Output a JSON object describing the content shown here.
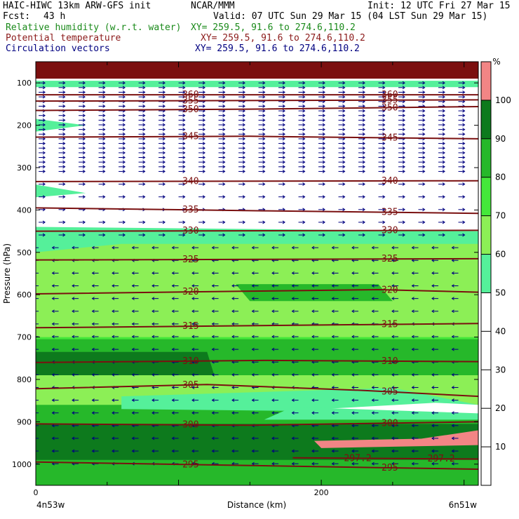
{
  "header": {
    "line1_left": "HAIC-HIWC 13km ARW-GFS init",
    "line1_mid": "NCAR/MMM",
    "line1_right": "Init: 12 UTC Fri 27 Mar 15",
    "fcst_label": "Fcst:",
    "fcst_value": "43 h",
    "valid": "Valid: 07 UTC Sun 29 Mar 15 (04 LST Sun 29 Mar 15)",
    "field1_name": "Relative humidity (w.r.t. water)",
    "field1_xy": "XY= 259.5, 91.6 to 274.6,110.2",
    "field2_name": "Potential temperature",
    "field2_xy": "XY= 259.5, 91.6 to 274.6,110.2",
    "field3_name": "Circulation vectors",
    "field3_xy": "XY= 259.5, 91.6 to 274.6,110.2",
    "colors": {
      "rh": "#1a8a1a",
      "theta": "#8b1a1a",
      "vec": "#000080"
    }
  },
  "chart_data": {
    "type": "cross-section",
    "xlabel": "Distance (km)",
    "ylabel": "Pressure (hPa)",
    "x_ticks": [
      0,
      200
    ],
    "x_range": [
      0,
      310
    ],
    "y_ticks": [
      100,
      200,
      300,
      400,
      500,
      600,
      700,
      800,
      900,
      1000
    ],
    "y_range": [
      50,
      1050
    ],
    "y_scale": "linear",
    "endpoints": {
      "left": "4n53w",
      "right": "6n51w"
    },
    "colorbar": {
      "unit": "%",
      "ticks": [
        10,
        20,
        30,
        40,
        50,
        60,
        70,
        80,
        90,
        100
      ],
      "bands": [
        {
          "min": 0,
          "max": 50,
          "color": "#ffffff"
        },
        {
          "min": 50,
          "max": 60,
          "color": "#55f09a"
        },
        {
          "min": 60,
          "max": 70,
          "color": "#8cef56"
        },
        {
          "min": 70,
          "max": 80,
          "color": "#44e83a"
        },
        {
          "min": 80,
          "max": 90,
          "color": "#26b82a"
        },
        {
          "min": 90,
          "max": 100,
          "color": "#0d7a1d"
        },
        {
          "min": 100,
          "max": 110,
          "color": "#f28585"
        }
      ],
      "top_color": "#7b0f0f"
    },
    "theta_contours": [
      {
        "value": 360,
        "label": "360",
        "points": [
          [
            0,
            128
          ],
          [
            310,
            128
          ]
        ]
      },
      {
        "value": 355,
        "label": "355",
        "points": [
          [
            0,
            143
          ],
          [
            310,
            140
          ]
        ]
      },
      {
        "value": 350,
        "label": "350",
        "points": [
          [
            0,
            165
          ],
          [
            150,
            162
          ],
          [
            310,
            156
          ]
        ]
      },
      {
        "value": 345,
        "label": "345",
        "points": [
          [
            0,
            228
          ],
          [
            150,
            226
          ],
          [
            310,
            232
          ]
        ]
      },
      {
        "value": 340,
        "label": "340",
        "points": [
          [
            0,
            333
          ],
          [
            310,
            331
          ]
        ]
      },
      {
        "value": 335,
        "label": "335",
        "points": [
          [
            0,
            395
          ],
          [
            160,
            402
          ],
          [
            310,
            408
          ]
        ]
      },
      {
        "value": 330,
        "label": "330",
        "points": [
          [
            0,
            450
          ],
          [
            310,
            448
          ]
        ]
      },
      {
        "value": 325,
        "label": "325",
        "points": [
          [
            0,
            518
          ],
          [
            310,
            515
          ]
        ]
      },
      {
        "value": 320,
        "label": "320",
        "points": [
          [
            0,
            598
          ],
          [
            140,
            592
          ],
          [
            240,
            588
          ],
          [
            310,
            594
          ]
        ]
      },
      {
        "value": 315,
        "label": "315",
        "points": [
          [
            0,
            678
          ],
          [
            310,
            668
          ]
        ]
      },
      {
        "value": 310,
        "label": "310",
        "points": [
          [
            0,
            760
          ],
          [
            160,
            755
          ],
          [
            310,
            758
          ]
        ]
      },
      {
        "value": 305,
        "label": "305",
        "points": [
          [
            0,
            822
          ],
          [
            120,
            812
          ],
          [
            230,
            826
          ],
          [
            310,
            840
          ]
        ]
      },
      {
        "value": 300,
        "label": "300",
        "points": [
          [
            0,
            905
          ],
          [
            150,
            908
          ],
          [
            310,
            900
          ]
        ]
      },
      {
        "value": 297.2,
        "label": "297.2",
        "points": [
          [
            180,
            985
          ],
          [
            310,
            988
          ]
        ]
      },
      {
        "value": 295,
        "label": "295",
        "points": [
          [
            0,
            995
          ],
          [
            310,
            1012
          ]
        ]
      }
    ],
    "rh_regions": [
      {
        "color": "#44e83a",
        "points": [
          [
            0,
            480
          ],
          [
            310,
            480
          ],
          [
            310,
            1050
          ],
          [
            0,
            1050
          ]
        ]
      },
      {
        "color": "#8cef56",
        "points": [
          [
            0,
            462
          ],
          [
            120,
            470
          ],
          [
            310,
            470
          ],
          [
            310,
            700
          ],
          [
            0,
            700
          ]
        ]
      },
      {
        "color": "#55f09a",
        "points": [
          [
            0,
            440
          ],
          [
            310,
            450
          ],
          [
            310,
            480
          ],
          [
            0,
            480
          ]
        ]
      },
      {
        "color": "#55f09a",
        "points": [
          [
            0,
            460
          ],
          [
            60,
            480
          ],
          [
            0,
            500
          ]
        ]
      },
      {
        "color": "#26b82a",
        "points": [
          [
            0,
            705
          ],
          [
            310,
            705
          ],
          [
            310,
            920
          ],
          [
            0,
            920
          ]
        ]
      },
      {
        "color": "#26b82a",
        "points": [
          [
            140,
            575
          ],
          [
            240,
            575
          ],
          [
            250,
            615
          ],
          [
            150,
            615
          ]
        ]
      },
      {
        "color": "#0d7a1d",
        "points": [
          [
            0,
            735
          ],
          [
            120,
            735
          ],
          [
            125,
            790
          ],
          [
            0,
            790
          ]
        ]
      },
      {
        "color": "#8cef56",
        "points": [
          [
            0,
            790
          ],
          [
            310,
            790
          ],
          [
            310,
            860
          ],
          [
            0,
            860
          ]
        ]
      },
      {
        "color": "#55f09a",
        "points": [
          [
            60,
            840
          ],
          [
            250,
            820
          ],
          [
            310,
            860
          ],
          [
            200,
            875
          ],
          [
            60,
            870
          ]
        ]
      },
      {
        "color": "#ffffff",
        "points": [
          [
            200,
            870
          ],
          [
            280,
            855
          ],
          [
            310,
            860
          ],
          [
            310,
            885
          ],
          [
            230,
            880
          ]
        ]
      },
      {
        "color": "#55f09a",
        "points": [
          [
            180,
            865
          ],
          [
            310,
            880
          ],
          [
            310,
            895
          ],
          [
            160,
            895
          ]
        ]
      },
      {
        "color": "#0d7a1d",
        "points": [
          [
            0,
            905
          ],
          [
            310,
            905
          ],
          [
            310,
            1015
          ],
          [
            0,
            1015
          ]
        ]
      },
      {
        "color": "#26b82a",
        "points": [
          [
            0,
            990
          ],
          [
            310,
            990
          ],
          [
            310,
            1050
          ],
          [
            0,
            1050
          ]
        ]
      },
      {
        "color": "#f28585",
        "points": [
          [
            195,
            945
          ],
          [
            270,
            940
          ],
          [
            310,
            920
          ],
          [
            310,
            955
          ],
          [
            200,
            962
          ]
        ]
      },
      {
        "color": "#55f09a",
        "points": [
          [
            0,
            185
          ],
          [
            35,
            200
          ],
          [
            0,
            215
          ]
        ]
      },
      {
        "color": "#55f09a",
        "points": [
          [
            0,
            340
          ],
          [
            35,
            360
          ],
          [
            0,
            370
          ]
        ]
      },
      {
        "color": "#55f09a",
        "points": [
          [
            0,
            95
          ],
          [
            310,
            95
          ],
          [
            310,
            110
          ],
          [
            0,
            110
          ]
        ]
      }
    ],
    "wind_field": {
      "upper_dir": "east",
      "lower_dir": "west",
      "reversal_hpa": 460
    }
  }
}
